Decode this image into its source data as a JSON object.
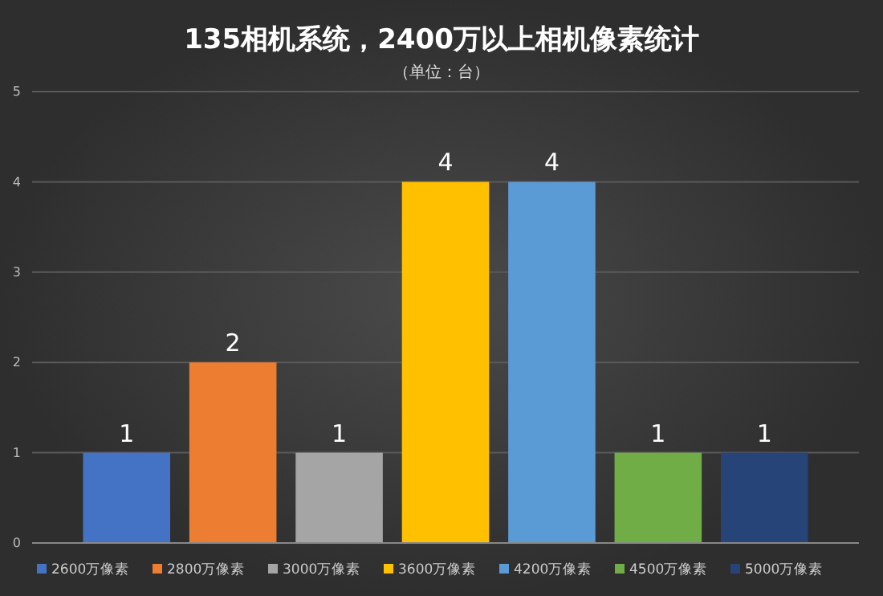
{
  "chart_data": {
    "type": "bar",
    "title": "135相机系统，2400万以上相机像素统计",
    "subtitle": "（单位：台）",
    "categories": [
      null
    ],
    "series": [
      {
        "name": "2600万像素",
        "color": "#4472c4",
        "values": [
          1
        ]
      },
      {
        "name": "2800万像素",
        "color": "#ed7d31",
        "values": [
          2
        ]
      },
      {
        "name": "3000万像素",
        "color": "#a5a5a5",
        "values": [
          1
        ]
      },
      {
        "name": "3600万像素",
        "color": "#ffc000",
        "values": [
          4
        ]
      },
      {
        "name": "4200万像素",
        "color": "#5b9bd5",
        "values": [
          4
        ]
      },
      {
        "name": "4500万像素",
        "color": "#70ad47",
        "values": [
          1
        ]
      },
      {
        "name": "5000万像素",
        "color": "#264478",
        "values": [
          1
        ]
      }
    ],
    "ylim": [
      0,
      5
    ],
    "yticks": [
      0,
      1,
      2,
      3,
      4,
      5
    ],
    "grid": "y",
    "legend": "bottom",
    "data_labels": true
  }
}
